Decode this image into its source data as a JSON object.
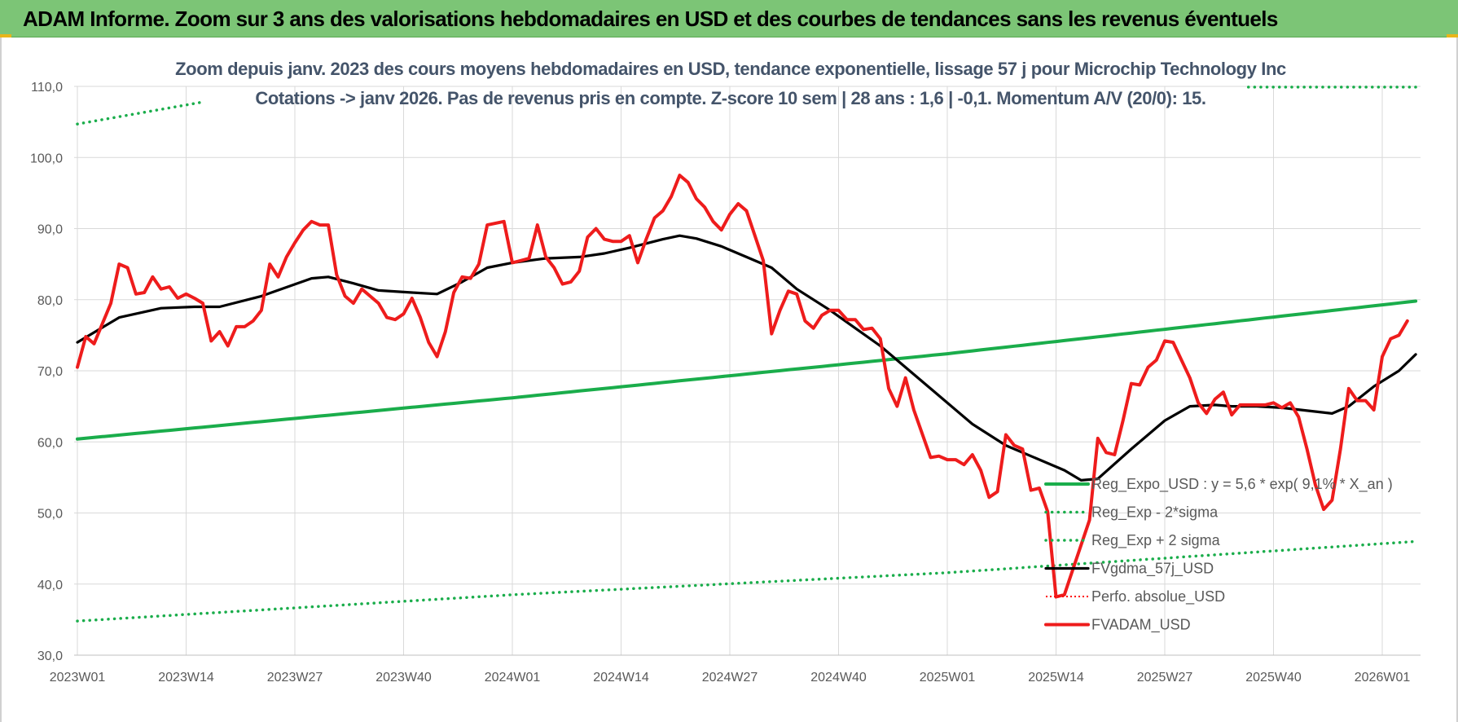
{
  "banner": {
    "title": "ADAM Informe. Zoom sur 3 ans des valorisations hebdomadaires en USD et des courbes de tendances sans les revenus éventuels"
  },
  "chart_data": {
    "type": "line",
    "title": "Zoom depuis janv. 2023 des cours moyens hebdomadaires en USD, tendance exponentielle, lissage 57 j pour Microchip Technology Inc",
    "subtitle": "Cotations -> janv 2026. Pas de revenus pris en compte. Z-score 10 sem | 28 ans : 1,6 | -0,1. Momentum A/V (20/0): 15.",
    "xlabel": "",
    "ylabel": "",
    "ylim": [
      30,
      110
    ],
    "y_ticks": [
      "30,0",
      "40,0",
      "50,0",
      "60,0",
      "70,0",
      "80,0",
      "90,0",
      "100,0",
      "110,0"
    ],
    "x_ticks": [
      "2023W01",
      "2023W14",
      "2023W27",
      "2023W40",
      "2024W01",
      "2024W14",
      "2024W27",
      "2024W40",
      "2025W01",
      "2025W14",
      "2025W27",
      "2025W40",
      "2026W01"
    ],
    "x_tick_weeks": [
      0,
      13,
      26,
      39,
      52,
      65,
      78,
      91,
      104,
      117,
      130,
      143,
      156
    ],
    "n_weeks": 161,
    "grid": true,
    "legend_position": "bottom-right",
    "series": [
      {
        "name": "Reg_Expo_USD : y = 5,6 * exp( 9,1% * X_an )",
        "color": "#1aad4b",
        "style": "solid-thick",
        "knots": [
          [
            0,
            60.4
          ],
          [
            52,
            66.2
          ],
          [
            104,
            72.4
          ],
          [
            160,
            79.8
          ]
        ]
      },
      {
        "name": "Reg_Exp - 2*sigma",
        "color": "#1aad4b",
        "style": "dotted",
        "knots": [
          [
            0,
            34.8
          ],
          [
            52,
            38.5
          ],
          [
            104,
            41.6
          ],
          [
            160,
            46.0
          ]
        ]
      },
      {
        "name": "Reg_Exp + 2 sigma",
        "color": "#1aad4b",
        "style": "dotted",
        "knots": [
          [
            0,
            104.7
          ],
          [
            15,
            107.8
          ],
          [
            140,
            109.9
          ],
          [
            160,
            109.9
          ]
        ],
        "gaps": [
          [
            15,
            140
          ]
        ]
      },
      {
        "name": "FVgdma_57j_USD",
        "color": "#000000",
        "style": "solid",
        "knots": [
          [
            0,
            74.0
          ],
          [
            5,
            77.5
          ],
          [
            10,
            78.8
          ],
          [
            14,
            79.0
          ],
          [
            17,
            79.0
          ],
          [
            22,
            80.5
          ],
          [
            28,
            83.0
          ],
          [
            30,
            83.2
          ],
          [
            33,
            82.3
          ],
          [
            36,
            81.3
          ],
          [
            40,
            81.0
          ],
          [
            43,
            80.8
          ],
          [
            46,
            82.5
          ],
          [
            49,
            84.5
          ],
          [
            52,
            85.2
          ],
          [
            56,
            85.8
          ],
          [
            60,
            86.0
          ],
          [
            63,
            86.5
          ],
          [
            66,
            87.3
          ],
          [
            70,
            88.5
          ],
          [
            72,
            89.0
          ],
          [
            74,
            88.6
          ],
          [
            77,
            87.5
          ],
          [
            80,
            86.0
          ],
          [
            83,
            84.5
          ],
          [
            86,
            81.5
          ],
          [
            90,
            78.5
          ],
          [
            93,
            76.0
          ],
          [
            96,
            73.5
          ],
          [
            100,
            69.5
          ],
          [
            103,
            66.5
          ],
          [
            107,
            62.5
          ],
          [
            111,
            59.5
          ],
          [
            114,
            58.0
          ],
          [
            118,
            56.0
          ],
          [
            120,
            54.6
          ],
          [
            122,
            54.8
          ],
          [
            126,
            59.0
          ],
          [
            130,
            63.0
          ],
          [
            133,
            65.0
          ],
          [
            136,
            65.2
          ],
          [
            138,
            65.0
          ],
          [
            141,
            65.0
          ],
          [
            144,
            64.8
          ],
          [
            147,
            64.4
          ],
          [
            150,
            64.0
          ],
          [
            152,
            65.0
          ],
          [
            155,
            67.8
          ],
          [
            158,
            70.0
          ],
          [
            160,
            72.3
          ]
        ]
      },
      {
        "name": "Perfo. absolue_USD",
        "color": "#ff0000",
        "style": "dotted-thin",
        "knots": []
      },
      {
        "name": "FVADAM_USD",
        "color": "#ee1c1c",
        "style": "solid-thick",
        "knots": [
          [
            0,
            70.5
          ],
          [
            1,
            74.8
          ],
          [
            2,
            73.8
          ],
          [
            4,
            79.5
          ],
          [
            5,
            85.0
          ],
          [
            6,
            84.5
          ],
          [
            7,
            80.8
          ],
          [
            8,
            81.0
          ],
          [
            9,
            83.2
          ],
          [
            10,
            81.5
          ],
          [
            11,
            81.8
          ],
          [
            12,
            80.2
          ],
          [
            13,
            80.8
          ],
          [
            14,
            80.2
          ],
          [
            15,
            79.5
          ],
          [
            16,
            74.2
          ],
          [
            17,
            75.5
          ],
          [
            18,
            73.5
          ],
          [
            19,
            76.2
          ],
          [
            20,
            76.2
          ],
          [
            21,
            77.0
          ],
          [
            22,
            78.5
          ],
          [
            23,
            85.0
          ],
          [
            24,
            83.2
          ],
          [
            25,
            86.0
          ],
          [
            26,
            88.0
          ],
          [
            27,
            89.8
          ],
          [
            28,
            91.0
          ],
          [
            29,
            90.5
          ],
          [
            30,
            90.5
          ],
          [
            31,
            83.5
          ],
          [
            32,
            80.5
          ],
          [
            33,
            79.5
          ],
          [
            34,
            81.5
          ],
          [
            35,
            80.5
          ],
          [
            36,
            79.5
          ],
          [
            37,
            77.5
          ],
          [
            38,
            77.2
          ],
          [
            39,
            78.0
          ],
          [
            40,
            80.2
          ],
          [
            41,
            77.5
          ],
          [
            42,
            74.0
          ],
          [
            43,
            72.0
          ],
          [
            44,
            75.5
          ],
          [
            45,
            81.0
          ],
          [
            46,
            83.2
          ],
          [
            47,
            83.0
          ],
          [
            48,
            85.0
          ],
          [
            49,
            90.5
          ],
          [
            51,
            91.0
          ],
          [
            52,
            85.2
          ],
          [
            53,
            85.5
          ],
          [
            54,
            85.8
          ],
          [
            55,
            90.5
          ],
          [
            56,
            86.0
          ],
          [
            57,
            84.5
          ],
          [
            58,
            82.2
          ],
          [
            59,
            82.5
          ],
          [
            60,
            84.0
          ],
          [
            61,
            88.8
          ],
          [
            62,
            90.0
          ],
          [
            63,
            88.5
          ],
          [
            64,
            88.2
          ],
          [
            65,
            88.2
          ],
          [
            66,
            89.0
          ],
          [
            67,
            85.2
          ],
          [
            68,
            88.5
          ],
          [
            69,
            91.5
          ],
          [
            70,
            92.5
          ],
          [
            71,
            94.5
          ],
          [
            72,
            97.5
          ],
          [
            73,
            96.5
          ],
          [
            74,
            94.2
          ],
          [
            75,
            93.0
          ],
          [
            76,
            91.0
          ],
          [
            77,
            89.8
          ],
          [
            78,
            92.0
          ],
          [
            79,
            93.5
          ],
          [
            80,
            92.5
          ],
          [
            81,
            89.0
          ],
          [
            82,
            85.5
          ],
          [
            83,
            75.2
          ],
          [
            84,
            78.5
          ],
          [
            85,
            81.2
          ],
          [
            86,
            80.8
          ],
          [
            87,
            77.0
          ],
          [
            88,
            76.0
          ],
          [
            89,
            77.8
          ],
          [
            90,
            78.5
          ],
          [
            91,
            78.5
          ],
          [
            92,
            77.2
          ],
          [
            93,
            77.2
          ],
          [
            94,
            75.8
          ],
          [
            95,
            76.0
          ],
          [
            96,
            74.5
          ],
          [
            97,
            67.5
          ],
          [
            98,
            65.0
          ],
          [
            99,
            69.0
          ],
          [
            100,
            64.5
          ],
          [
            102,
            57.8
          ],
          [
            103,
            58.0
          ],
          [
            104,
            57.5
          ],
          [
            105,
            57.5
          ],
          [
            106,
            56.8
          ],
          [
            107,
            58.2
          ],
          [
            108,
            56.0
          ],
          [
            109,
            52.2
          ],
          [
            110,
            53.0
          ],
          [
            111,
            61.0
          ],
          [
            112,
            59.5
          ],
          [
            113,
            59.0
          ],
          [
            114,
            53.2
          ],
          [
            115,
            53.5
          ],
          [
            116,
            50.2
          ],
          [
            117,
            38.2
          ],
          [
            118,
            38.5
          ],
          [
            119,
            42.0
          ],
          [
            121,
            49.0
          ],
          [
            122,
            60.5
          ],
          [
            123,
            58.5
          ],
          [
            124,
            58.2
          ],
          [
            125,
            63.0
          ],
          [
            126,
            68.2
          ],
          [
            127,
            68.0
          ],
          [
            128,
            70.5
          ],
          [
            129,
            71.5
          ],
          [
            130,
            74.2
          ],
          [
            131,
            74.0
          ],
          [
            132,
            71.5
          ],
          [
            133,
            69.0
          ],
          [
            134,
            65.5
          ],
          [
            135,
            64.0
          ],
          [
            136,
            66.0
          ],
          [
            137,
            67.0
          ],
          [
            138,
            63.8
          ],
          [
            139,
            65.2
          ],
          [
            140,
            65.2
          ],
          [
            141,
            65.2
          ],
          [
            142,
            65.2
          ],
          [
            143,
            65.5
          ],
          [
            144,
            64.8
          ],
          [
            145,
            65.5
          ],
          [
            146,
            63.5
          ],
          [
            147,
            59.0
          ],
          [
            148,
            54.0
          ],
          [
            149,
            50.5
          ],
          [
            150,
            51.8
          ],
          [
            151,
            59.0
          ],
          [
            152,
            67.5
          ],
          [
            153,
            65.8
          ],
          [
            154,
            65.8
          ],
          [
            155,
            64.5
          ],
          [
            156,
            72.0
          ],
          [
            157,
            74.5
          ],
          [
            158,
            75.0
          ],
          [
            159,
            77.0
          ]
        ]
      }
    ]
  }
}
